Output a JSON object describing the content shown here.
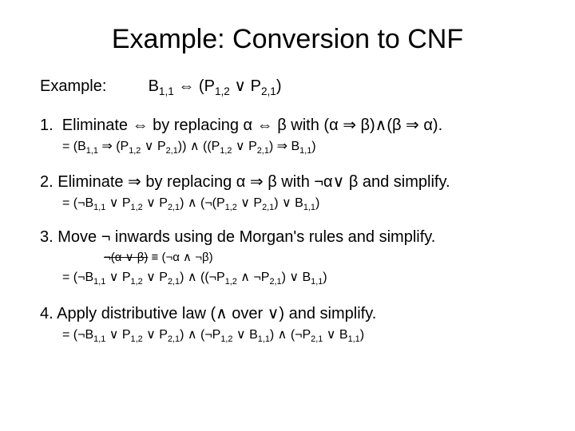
{
  "title": "Example: Conversion to CNF",
  "example": {
    "label": "Example:",
    "formula_html": "B<sub>1,1</sub> &hArr; (P<sub>1,2</sub> &or; P<sub>2,1</sub>)"
  },
  "steps": [
    {
      "text_html": "1.&nbsp;&nbsp;Eliminate &hArr; by replacing &alpha; &hArr; &beta; with (&alpha; &rArr; &beta;)&and;(&beta; &rArr; &alpha;).",
      "sub_html": "= (B<sub>1,1</sub> &rArr; (P<sub>1,2</sub> &or; P<sub>2,1</sub>)) &and; ((P<sub>1,2</sub> &or; P<sub>2,1</sub>) &rArr; B<sub>1,1</sub>)"
    },
    {
      "text_html": "2. Eliminate &rArr; by replacing &alpha; &rArr; &beta; with &not;&alpha;&or; &beta; and simplify.",
      "sub_html": "= (&not;B<sub>1,1</sub> &or; P<sub>1,2</sub> &or; P<sub>2,1</sub>) &and; (&not;(P<sub>1,2</sub> &or; P<sub>2,1</sub>) &or; B<sub>1,1</sub>)"
    },
    {
      "text_html": "3. Move &not; inwards using de Morgan's rules and simplify.",
      "img_html": "<span class=\"strike\">&not;(&alpha; &or; &beta;)</span> &equiv; (&not;&alpha; &and; &not;&beta;)",
      "sub_html": "= (&not;B<sub>1,1</sub> &or; P<sub>1,2</sub> &or; P<sub>2,1</sub>) &and; ((&not;P<sub>1,2</sub> &and; &not;P<sub>2,1</sub>) &or; B<sub>1,1</sub>)"
    },
    {
      "text_html": "4. Apply distributive law (&and; over &or;) and simplify.",
      "sub_html": "= (&not;B<sub>1,1</sub> &or; P<sub>1,2</sub> &or; P<sub>2,1</sub>) &and; (&not;P<sub>1,2</sub> &or; B<sub>1,1</sub>) &and; (&not;P<sub>2,1</sub> &or; B<sub>1,1</sub>)"
    }
  ],
  "colors": {
    "background": "#ffffff",
    "text": "#000000"
  },
  "fonts": {
    "family": "Arial",
    "title_size_pt": 34,
    "body_size_pt": 20,
    "sub_size_pt": 16
  }
}
